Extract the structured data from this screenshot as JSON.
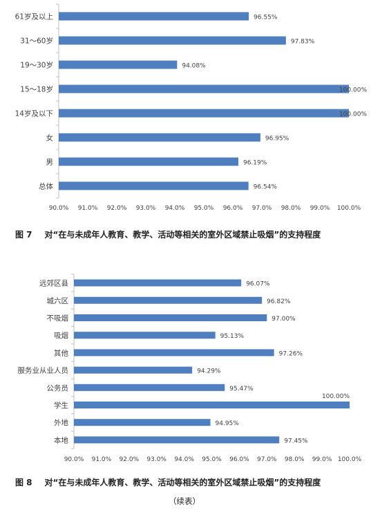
{
  "chart_data": [
    {
      "type": "bar",
      "orientation": "horizontal",
      "categories": [
        "61岁及以上",
        "31～60岁",
        "19～30岁",
        "15～18岁",
        "14岁及以下",
        "女",
        "男",
        "总体"
      ],
      "values": [
        96.55,
        97.83,
        94.08,
        100.0,
        100.0,
        96.95,
        96.19,
        96.54
      ],
      "value_labels": [
        "96.55%",
        "97.83%",
        "94.08%",
        "100.00%",
        "100.00%",
        "96.95%",
        "96.19%",
        "96.54%"
      ],
      "xlim": [
        90,
        100
      ],
      "x_ticks": [
        "90.0%",
        "91.0%",
        "92.0%",
        "93.0%",
        "94.0%",
        "95.0%",
        "96.0%",
        "97.0%",
        "98.0%",
        "99.0%",
        "100.0%"
      ],
      "grid": false,
      "bar_color": "#4f7fbf",
      "title": "",
      "xlabel": "",
      "ylabel": ""
    },
    {
      "type": "bar",
      "orientation": "horizontal",
      "categories": [
        "远郊区县",
        "城六区",
        "不吸烟",
        "吸烟",
        "其他",
        "服务业从业人员",
        "公务员",
        "学生",
        "外地",
        "本地"
      ],
      "values": [
        96.07,
        96.82,
        97.0,
        95.13,
        97.26,
        94.29,
        95.47,
        100.0,
        94.95,
        97.45
      ],
      "value_labels": [
        "96.07%",
        "96.82%",
        "97.00%",
        "95.13%",
        "97.26%",
        "94.29%",
        "95.47%",
        "100.00%",
        "94.95%",
        "97.45%"
      ],
      "xlim": [
        90,
        100
      ],
      "x_ticks": [
        "90.0%",
        "91.0%",
        "92.0%",
        "93.0%",
        "94.0%",
        "95.0%",
        "96.0%",
        "97.0%",
        "98.0%",
        "99.0%",
        "100.0%"
      ],
      "grid": false,
      "bar_color": "#4f7fbf",
      "title": "",
      "xlabel": "",
      "ylabel": ""
    }
  ],
  "captions": [
    {
      "number": "图 7",
      "text": "对“在与未成年人教育、教学、活动等相关的室外区域禁止吸烟”的支持程度"
    },
    {
      "number": "图 8",
      "text": "对“在与未成年人教育、教学、活动等相关的室外区域禁止吸烟”的支持程度"
    }
  ],
  "continued_note": "（续表）"
}
